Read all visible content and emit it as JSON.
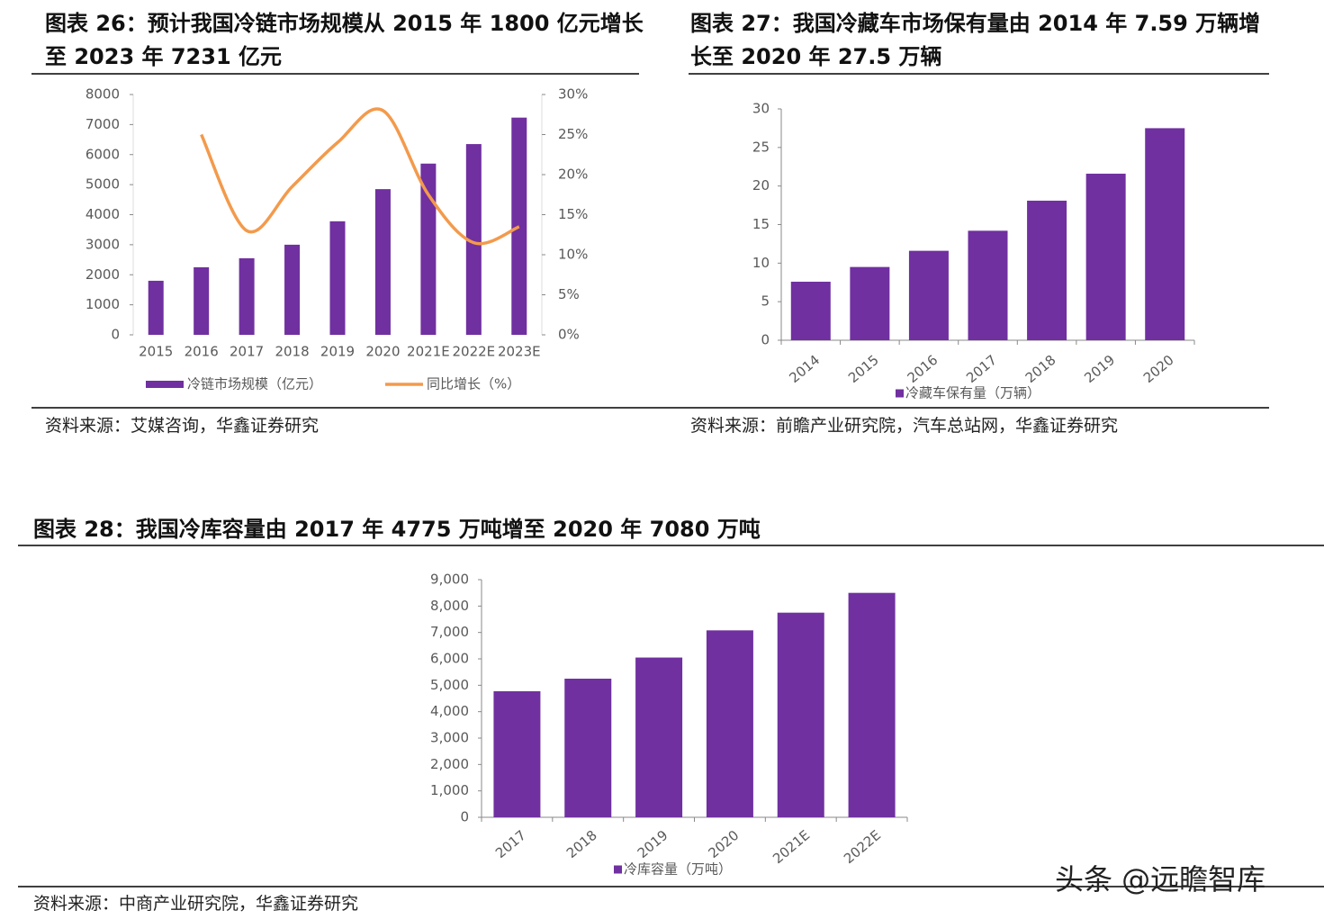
{
  "chart_data": [
    {
      "type": "bar",
      "title": "图表 26：预计我国冷链市场规模从 2015 年 1800 亿元增长至 2023 年 7231 亿元",
      "categories": [
        "2015",
        "2016",
        "2017",
        "2018",
        "2019",
        "2020",
        "2021E",
        "2022E",
        "2023E"
      ],
      "series": [
        {
          "name": "冷链市场规模（亿元）",
          "type": "bar",
          "color": "#7030a0",
          "values": [
            1800,
            2250,
            2550,
            3000,
            3780,
            4850,
            5700,
            6350,
            7231
          ]
        },
        {
          "name": "同比增长（%）",
          "type": "line",
          "axis": "y2",
          "color": "#f39a4c",
          "values": [
            null,
            25,
            13,
            18.5,
            24,
            28,
            17.5,
            11.5,
            13.5
          ]
        }
      ],
      "ylim": [
        0,
        8000
      ],
      "yticks": [
        0,
        1000,
        2000,
        3000,
        4000,
        5000,
        6000,
        7000,
        8000
      ],
      "y2lim": [
        0,
        30
      ],
      "y2ticks": [
        {
          "value": 0,
          "label": "0%"
        },
        {
          "value": 5,
          "label": "5%"
        },
        {
          "value": 10,
          "label": "10%"
        },
        {
          "value": 15,
          "label": "15%"
        },
        {
          "value": 20,
          "label": "20%"
        },
        {
          "value": 25,
          "label": "25%"
        },
        {
          "value": 30,
          "label": "30%"
        }
      ],
      "source": "资料来源：艾媒咨询，华鑫证券研究"
    },
    {
      "type": "bar",
      "title": "图表 27：我国冷藏车市场保有量由 2014 年 7.59 万辆增长至 2020 年 27.5 万辆",
      "categories": [
        "2014",
        "2015",
        "2016",
        "2017",
        "2018",
        "2019",
        "2020"
      ],
      "series": [
        {
          "name": "冷藏车保有量（万辆）",
          "type": "bar",
          "color": "#7030a0",
          "values": [
            7.59,
            9.5,
            11.6,
            14.2,
            18.1,
            21.6,
            27.5
          ]
        }
      ],
      "ylim": [
        0,
        30
      ],
      "yticks": [
        0,
        5,
        10,
        15,
        20,
        25,
        30
      ],
      "source": "资料来源：前瞻产业研究院，汽车总站网，华鑫证券研究"
    },
    {
      "type": "bar",
      "title": "图表 28：我国冷库容量由 2017 年 4775 万吨增至 2020 年 7080 万吨",
      "categories": [
        "2017",
        "2018",
        "2019",
        "2020",
        "2021E",
        "2022E"
      ],
      "series": [
        {
          "name": "冷库容量（万吨）",
          "type": "bar",
          "color": "#7030a0",
          "values": [
            4775,
            5250,
            6050,
            7080,
            7750,
            8500
          ]
        }
      ],
      "ylim": [
        0,
        9000
      ],
      "yticks": [
        0,
        {
          "value": 1000,
          "label": "1,000"
        },
        {
          "value": 2000,
          "label": "2,000"
        },
        {
          "value": 3000,
          "label": "3,000"
        },
        {
          "value": 4000,
          "label": "4,000"
        },
        {
          "value": 5000,
          "label": "5,000"
        },
        {
          "value": 6000,
          "label": "6,000"
        },
        {
          "value": 7000,
          "label": "7,000"
        },
        {
          "value": 8000,
          "label": "8,000"
        },
        {
          "value": 9000,
          "label": "9,000"
        }
      ],
      "source": "资料来源：中商产业研究院，华鑫证券研究"
    }
  ],
  "watermark": "头条 @远瞻智库"
}
